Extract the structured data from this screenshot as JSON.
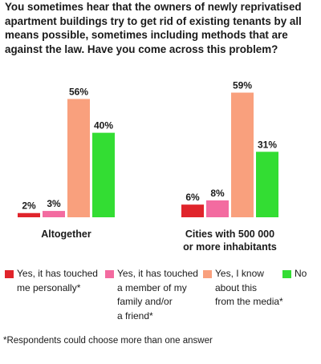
{
  "chart_data": {
    "type": "bar",
    "title": "You sometimes hear that the owners of newly reprivatised apartment buildings try to get rid of existing tenants by all means possible, sometimes including methods that are against the law. Have you come across this problem?",
    "categories": [
      "Altogether",
      "Cities with 500 000 or more inhabitants"
    ],
    "series": [
      {
        "name": "Yes, it has touched me personally*",
        "color": "#e0242b",
        "values": [
          2,
          6
        ],
        "labels": [
          "2%",
          "6%"
        ]
      },
      {
        "name": "Yes, it has touched a member of my family and/or a friend*",
        "color": "#f36ba0",
        "values": [
          3,
          8
        ],
        "labels": [
          "3%",
          "8%"
        ]
      },
      {
        "name": "Yes, I know about this from the media*",
        "color": "#f9a07d",
        "values": [
          56,
          59
        ],
        "labels": [
          "56%",
          "59%"
        ]
      },
      {
        "name": "No",
        "color": "#33dd33",
        "values": [
          40,
          31
        ],
        "labels": [
          "40%",
          "31%"
        ]
      }
    ],
    "ylim": [
      0,
      60
    ],
    "grid": false,
    "legend_position": "bottom",
    "footnote": "*Respondents could choose more than one answer"
  },
  "legend": {
    "items": [
      {
        "lines": [
          "Yes, it has touched",
          "me personally*"
        ]
      },
      {
        "lines": [
          "Yes, it has touched",
          "a member of my",
          "family and/or",
          "a friend*"
        ]
      },
      {
        "lines": [
          "Yes, I know",
          "about this",
          "from the media*"
        ]
      },
      {
        "lines": [
          "No"
        ]
      }
    ]
  },
  "category_labels": [
    {
      "lines": [
        "Altogether"
      ]
    },
    {
      "lines": [
        "Cities with 500 000",
        "or more inhabitants"
      ]
    }
  ]
}
